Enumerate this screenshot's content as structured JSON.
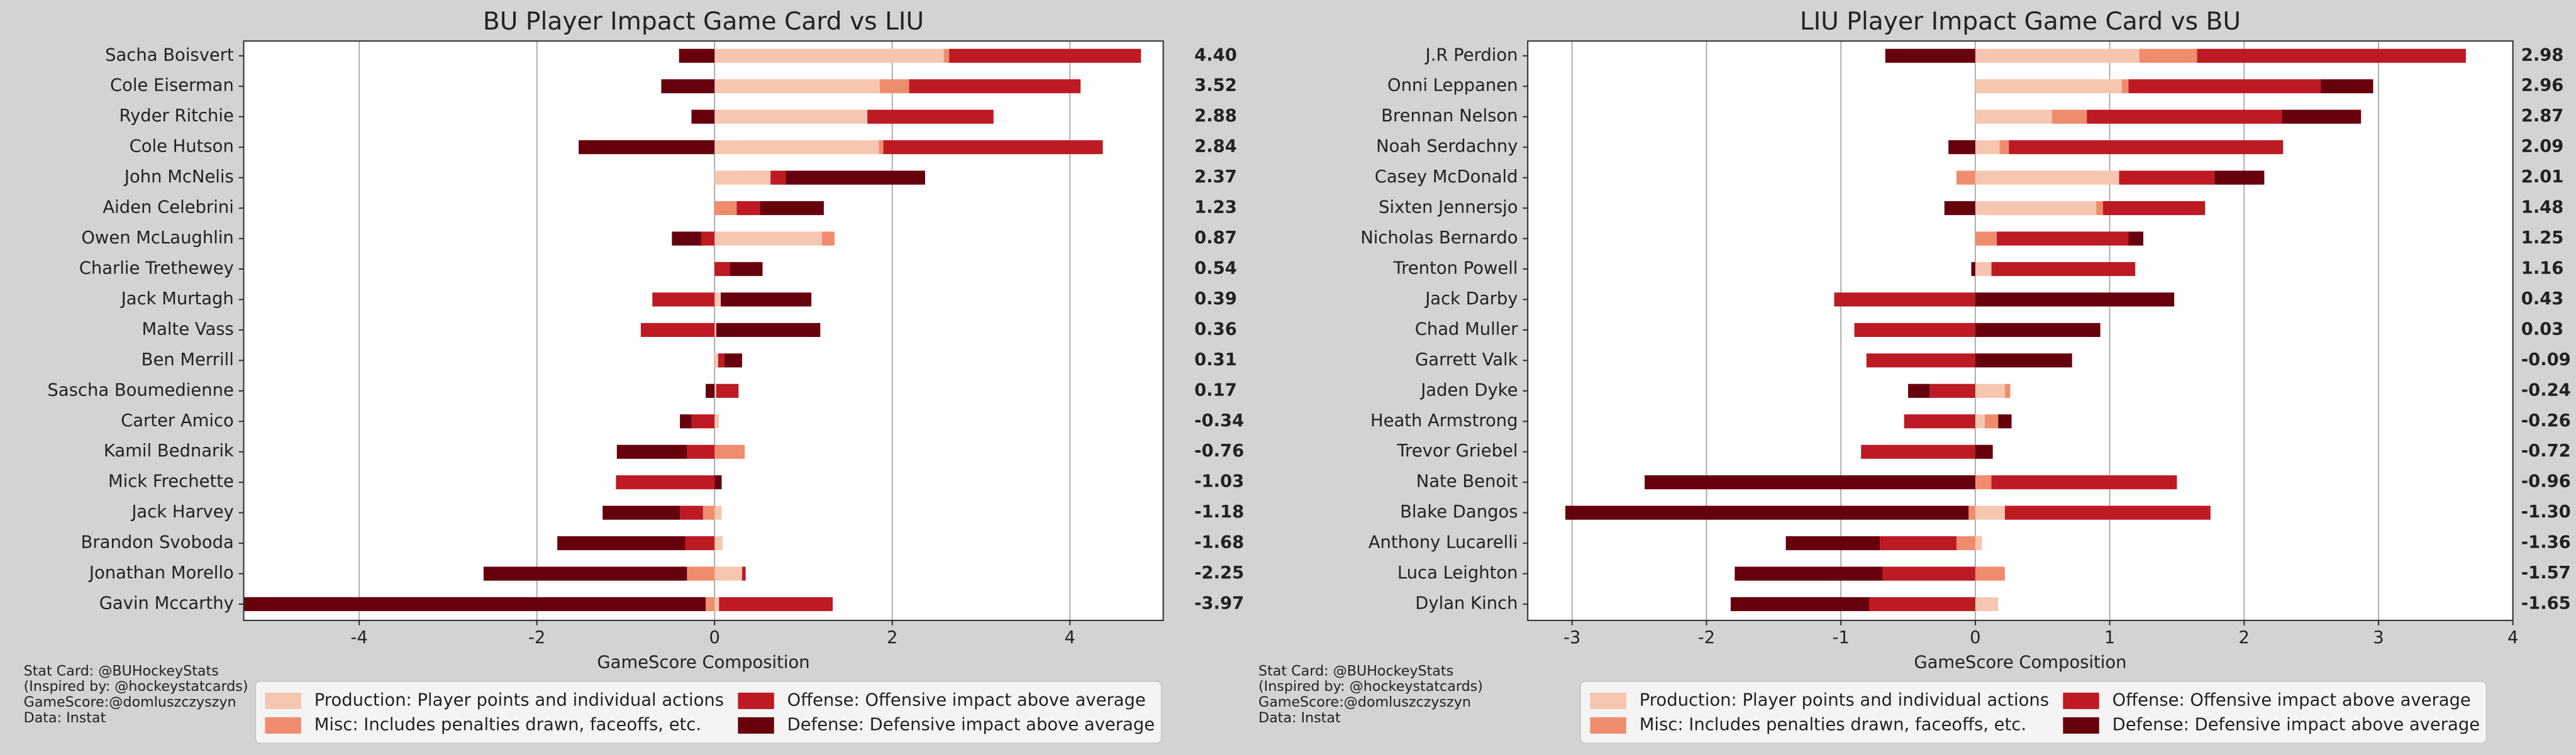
{
  "chart_data": [
    {
      "type": "bar",
      "orientation": "horizontal",
      "title": "BU Player Impact Game Card vs LIU",
      "xlabel": "GameScore Composition",
      "categories": [
        "Sacha Boisvert",
        "Cole Eiserman",
        "Ryder Ritchie",
        "Cole Hutson",
        "John McNelis",
        "Aiden Celebrini",
        "Owen McLaughlin",
        "Charlie Trethewey",
        "Jack Murtagh",
        "Malte Vass",
        "Ben Merrill",
        "Sascha Boumedienne",
        "Carter Amico",
        "Kamil Bednarik",
        "Mick Frechette",
        "Jack Harvey",
        "Brandon Svoboda",
        "Jonathan Morello",
        "Gavin Mccarthy"
      ],
      "series": [
        {
          "name": "Production: Player points and individual actions",
          "color": "#f7c6b0",
          "values": [
            2.58,
            1.86,
            1.72,
            1.85,
            0.63,
            0,
            1.21,
            0,
            0.07,
            0.02,
            0.04,
            0.02,
            0.05,
            0,
            0,
            0.08,
            0.09,
            0.31,
            0.05
          ]
        },
        {
          "name": "Misc: Includes penalties drawn, faceoffs, etc.",
          "color": "#f08c6e",
          "values": [
            0.06,
            0.33,
            0,
            0.05,
            0,
            0.25,
            0.14,
            0,
            0,
            0,
            0,
            0,
            0,
            0.34,
            0,
            -0.13,
            0,
            -0.31,
            -0.1
          ]
        },
        {
          "name": "Offense: Offensive impact above average",
          "color": "#bd1a24",
          "values": [
            2.16,
            1.93,
            1.42,
            2.47,
            0.17,
            0.26,
            -0.15,
            0.17,
            -0.7,
            -0.83,
            0.07,
            0.25,
            -0.26,
            -0.31,
            -1.11,
            -0.26,
            -0.33,
            0.04,
            1.28
          ]
        },
        {
          "name": "Defense: Defensive impact above average",
          "color": "#67000d",
          "values": [
            -0.4,
            -0.6,
            -0.26,
            -1.53,
            1.57,
            0.72,
            -0.33,
            0.37,
            1.02,
            1.17,
            0.2,
            -0.1,
            -0.13,
            -0.79,
            0.08,
            -0.87,
            -1.44,
            -2.29,
            -5.2
          ]
        }
      ],
      "values": [
        4.4,
        3.52,
        2.88,
        2.84,
        2.37,
        1.23,
        0.87,
        0.54,
        0.39,
        0.36,
        0.31,
        0.17,
        -0.34,
        -0.76,
        -1.03,
        -1.18,
        -1.68,
        -2.25,
        -3.97
      ],
      "value_labels": [
        "4.40",
        "3.52",
        "2.88",
        "2.84",
        "2.37",
        "1.23",
        "0.87",
        "0.54",
        "0.39",
        "0.36",
        "0.31",
        "0.17",
        "-0.34",
        "-0.76",
        "-1.03",
        "-1.18",
        "-1.68",
        "-2.25",
        "-3.97"
      ],
      "xlim": [
        -5.3,
        5.05
      ],
      "xticks": [
        -4,
        -2,
        0,
        2,
        4
      ],
      "grid": true,
      "notes": [
        "Stat Card: @BUHockeyStats",
        "(Inspired by: @hockeystatcards)",
        "GameScore:@domluszczyszyn",
        "Data: Instat"
      ]
    },
    {
      "type": "bar",
      "orientation": "horizontal",
      "title": "LIU Player Impact Game Card vs BU",
      "xlabel": "GameScore Composition",
      "categories": [
        "J.R Perdion",
        "Onni Leppanen",
        "Brennan Nelson",
        "Noah Serdachny",
        "Casey McDonald",
        "Sixten Jennersjo",
        "Nicholas Bernardo",
        "Trenton Powell",
        "Jack Darby",
        "Chad Muller",
        "Garrett Valk",
        "Jaden Dyke",
        "Heath Armstrong",
        "Trevor Griebel",
        "Nate Benoit",
        "Blake Dangos",
        "Anthony Lucarelli",
        "Luca Leighton",
        "Dylan Kinch"
      ],
      "series": [
        {
          "name": "Production: Player points and individual actions",
          "color": "#f7c6b0",
          "values": [
            1.22,
            1.09,
            0.57,
            0.18,
            1.07,
            0.9,
            0,
            0.12,
            0,
            0,
            0,
            0.22,
            0.07,
            0,
            0,
            0.22,
            0.05,
            0,
            0.17
          ]
        },
        {
          "name": "Misc: Includes penalties drawn, faceoffs, etc.",
          "color": "#f08c6e",
          "values": [
            0.43,
            0.05,
            0.26,
            0.07,
            -0.14,
            0.05,
            0.16,
            0,
            0,
            0,
            0,
            0.04,
            0.1,
            0,
            0.12,
            -0.05,
            -0.14,
            0.22,
            0
          ]
        },
        {
          "name": "Offense: Offensive impact above average",
          "color": "#bd1a24",
          "values": [
            2.0,
            1.43,
            1.45,
            2.04,
            0.71,
            0.76,
            0.98,
            1.07,
            -1.05,
            -0.9,
            -0.81,
            -0.34,
            -0.53,
            -0.85,
            1.38,
            1.53,
            -0.57,
            -0.69,
            -0.79
          ]
        },
        {
          "name": "Defense: Defensive impact above average",
          "color": "#67000d",
          "values": [
            -0.67,
            0.39,
            0.59,
            -0.2,
            0.37,
            -0.23,
            0.11,
            -0.03,
            1.48,
            0.93,
            0.72,
            -0.16,
            0.1,
            0.13,
            -2.46,
            -3.0,
            -0.7,
            -1.1,
            -1.03
          ]
        }
      ],
      "values": [
        2.98,
        2.96,
        2.87,
        2.09,
        2.01,
        1.48,
        1.25,
        1.16,
        0.43,
        0.03,
        -0.09,
        -0.24,
        -0.26,
        -0.72,
        -0.96,
        -1.3,
        -1.36,
        -1.57,
        -1.65
      ],
      "value_labels": [
        "2.98",
        "2.96",
        "2.87",
        "2.09",
        "2.01",
        "1.48",
        "1.25",
        "1.16",
        "0.43",
        "0.03",
        "-0.09",
        "-0.24",
        "-0.26",
        "-0.72",
        "-0.96",
        "-1.30",
        "-1.36",
        "-1.57",
        "-1.65"
      ],
      "xlim": [
        -3.33,
        4
      ],
      "xticks": [
        -3,
        -2,
        -1,
        0,
        1,
        2,
        3,
        4
      ],
      "grid": true,
      "notes": [
        "Stat Card: @BUHockeyStats",
        "(Inspired by: @hockeystatcards)",
        "GameScore:@domluszczyszyn",
        "Data: Instat"
      ]
    }
  ]
}
